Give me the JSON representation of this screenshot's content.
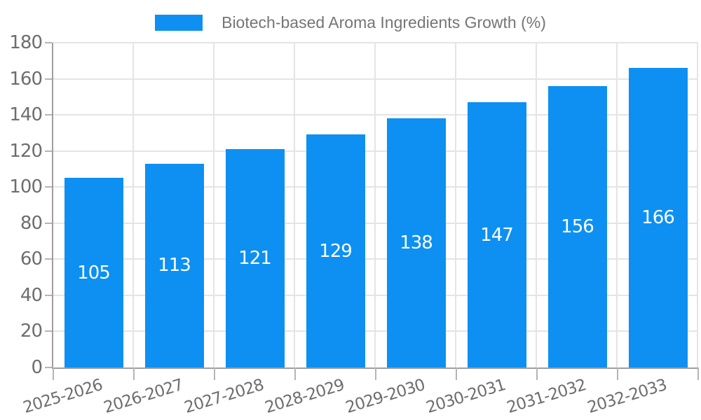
{
  "legend": {
    "label": "Biotech-based Aroma Ingredients Growth (%)",
    "swatch_color": "#0D90F2"
  },
  "chart_data": {
    "type": "bar",
    "title": "Biotech-based Aroma Ingredients Growth (%)",
    "categories": [
      "2025-2026",
      "2026-2027",
      "2027-2028",
      "2028-2029",
      "2029-2030",
      "2030-2031",
      "2031-2032",
      "2032-2033"
    ],
    "values": [
      105,
      113,
      121,
      129,
      138,
      147,
      156,
      166
    ],
    "value_labels": [
      "105",
      "113",
      "121",
      "129",
      "138",
      "147",
      "156",
      "166"
    ],
    "xlabel": "",
    "ylabel": "",
    "ylim": [
      0,
      180
    ],
    "ytick_step": 20,
    "ytick_labels": [
      "0",
      "20",
      "40",
      "60",
      "80",
      "100",
      "120",
      "140",
      "160",
      "180"
    ],
    "grid": true,
    "legend_position": "top-center",
    "bar_color": "#0D90F2",
    "value_label_color": "#ffffff",
    "x_label_rotation_deg": -17
  },
  "style": {
    "grid_color": "#e4e4e4",
    "axis_color": "#9e9e9e",
    "tick_color": "#b5b5b5",
    "text_color": "#6e6e6e",
    "legend_text_color": "#757575",
    "background": "#ffffff"
  }
}
